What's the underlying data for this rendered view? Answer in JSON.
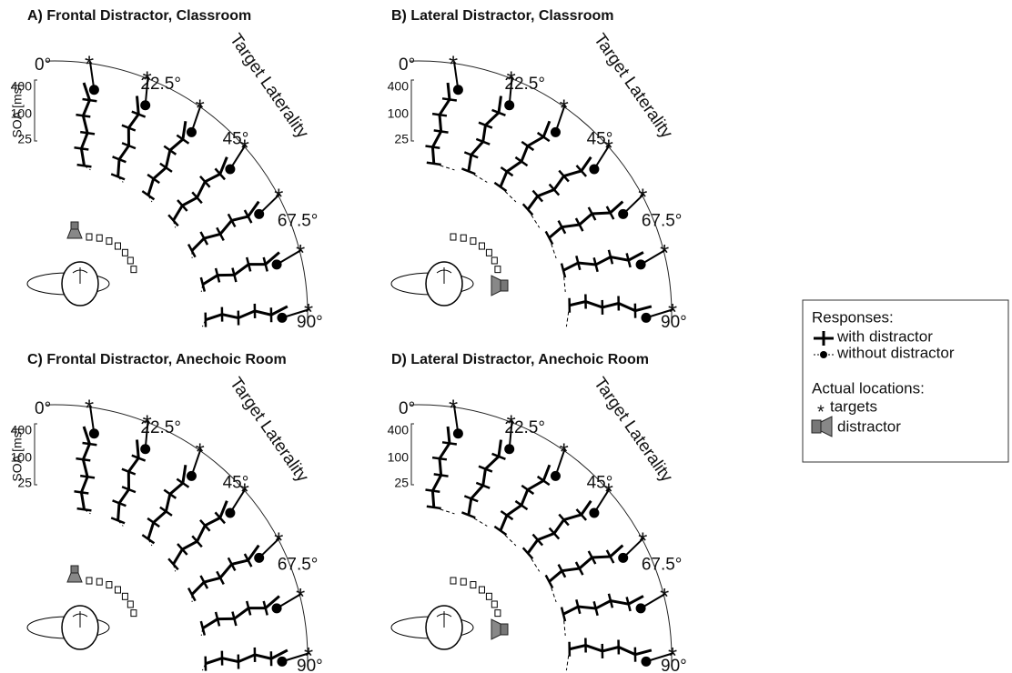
{
  "panels": [
    {
      "title": "A) Frontal Distractor, Classroom",
      "axis_title": "Target Laterality",
      "angle_labels": [
        "0°",
        "22.5°",
        "45°",
        "67.5°",
        "90°"
      ],
      "soa_title": "SOA [ms]",
      "soa_labels": [
        "400",
        "100",
        "25"
      ],
      "distractor": "frontal"
    },
    {
      "title": "B) Lateral Distractor, Classroom",
      "axis_title": "Target Laterality",
      "angle_labels": [
        "0°",
        "22.5°",
        "45°",
        "67.5°",
        "90°"
      ],
      "soa_labels": [
        "400",
        "100",
        "25"
      ],
      "distractor": "lateral"
    },
    {
      "title": "C) Frontal Distractor, Anechoic Room",
      "axis_title": "Target Laterality",
      "angle_labels": [
        "0°",
        "22.5°",
        "45°",
        "67.5°",
        "90°"
      ],
      "soa_title": "SOA [ms]",
      "soa_labels": [
        "400",
        "100",
        "25"
      ],
      "distractor": "frontal"
    },
    {
      "title": "D) Lateral Distractor, Anechoic Room",
      "axis_title": "Target Laterality",
      "angle_labels": [
        "0°",
        "22.5°",
        "45°",
        "67.5°",
        "90°"
      ],
      "soa_labels": [
        "400",
        "100",
        "25"
      ],
      "distractor": "lateral"
    }
  ],
  "legend": {
    "responses_title": "Responses:",
    "with": "with distractor",
    "without": "without distractor",
    "locations_title": "Actual locations:",
    "targets": "targets",
    "distractor": "distractor"
  }
}
